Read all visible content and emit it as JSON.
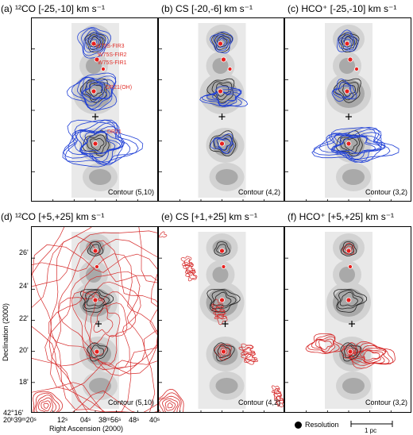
{
  "panels": {
    "a": {
      "title": "(a) ¹²CO [-25,-10] km s⁻¹",
      "contour": "Contour (5,10)"
    },
    "b": {
      "title": "(b) CS [-20,-6] km s⁻¹",
      "contour": "Contour (4,2)"
    },
    "c": {
      "title": "(c) HCO⁺ [-25,-10] km s⁻¹",
      "contour": "Contour (3,2)"
    },
    "d": {
      "title": "(d) ¹²CO [+5,+25] km s⁻¹",
      "contour": "Contour (5,10)"
    },
    "e": {
      "title": "(e) CS [+1,+25] km s⁻¹",
      "contour": "Contour (4,2)"
    },
    "f": {
      "title": "(f) HCO⁺ [+5,+25] km s⁻¹",
      "contour": "Contour (3,2)"
    }
  },
  "sources": {
    "fir3": "W75S-FIR3",
    "fir2": "W75S-FIR2",
    "fir1": "W75S-FIR1",
    "dr21oh": "DR21(OH)",
    "dr21": "DR21"
  },
  "axes": {
    "ylabel": "Declination (2000)",
    "xlabel": "Right Ascension (2000)",
    "yticks": [
      "26'",
      "24'",
      "22'",
      "20'",
      "18'",
      "42°16'"
    ],
    "xticks": [
      "20ʰ39ᵐ20ˢ",
      "12ˢ",
      "04ˢ",
      "38ᵐ56ˢ",
      "48ˢ",
      "40ˢ"
    ]
  },
  "legend": {
    "resolution": "Resolution",
    "scalebar": "1 pc"
  },
  "colors": {
    "blue": "#1f3fd6",
    "red": "#d62a2a",
    "gray": "#888888",
    "dot": "#e8201e"
  }
}
